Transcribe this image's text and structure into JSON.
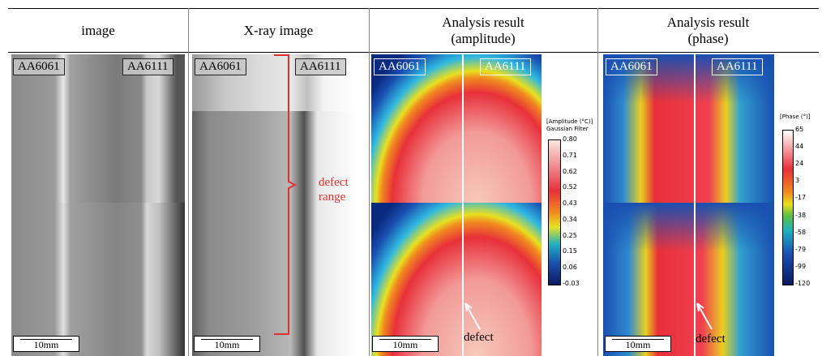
{
  "table": {
    "headers": [
      [
        "image"
      ],
      [
        "X-ray image"
      ],
      [
        "Analysis result",
        "(amplitude)"
      ],
      [
        "Analysis result",
        "(phase)"
      ]
    ]
  },
  "panels": [
    {
      "left_label": "AA6061",
      "right_label": "AA6111",
      "scale": "10mm"
    },
    {
      "left_label": "AA6061",
      "right_label": "AA6111",
      "scale": "10mm"
    },
    {
      "left_label": "AA6061",
      "right_label": "AA6111",
      "scale": "10mm"
    },
    {
      "left_label": "AA6061",
      "right_label": "AA6111",
      "scale": "10mm"
    }
  ],
  "annotations": {
    "defect_range": [
      "defect",
      "range"
    ],
    "defect_amplitude": "defect",
    "defect_phase": "defect"
  },
  "amplitude_colorbar": {
    "title": [
      "[Amplitude (°C)]",
      "Gaussian Filter"
    ],
    "ticks": [
      "0.80",
      "0.71",
      "0.62",
      "0.52",
      "0.43",
      "0.34",
      "0.25",
      "0.15",
      "0.06",
      "-0.03"
    ]
  },
  "phase_colorbar": {
    "title": [
      "[Phase (°)]"
    ],
    "ticks": [
      "65",
      "44",
      "24",
      "3",
      "-17",
      "-38",
      "-58",
      "-79",
      "-99",
      "-120"
    ]
  }
}
